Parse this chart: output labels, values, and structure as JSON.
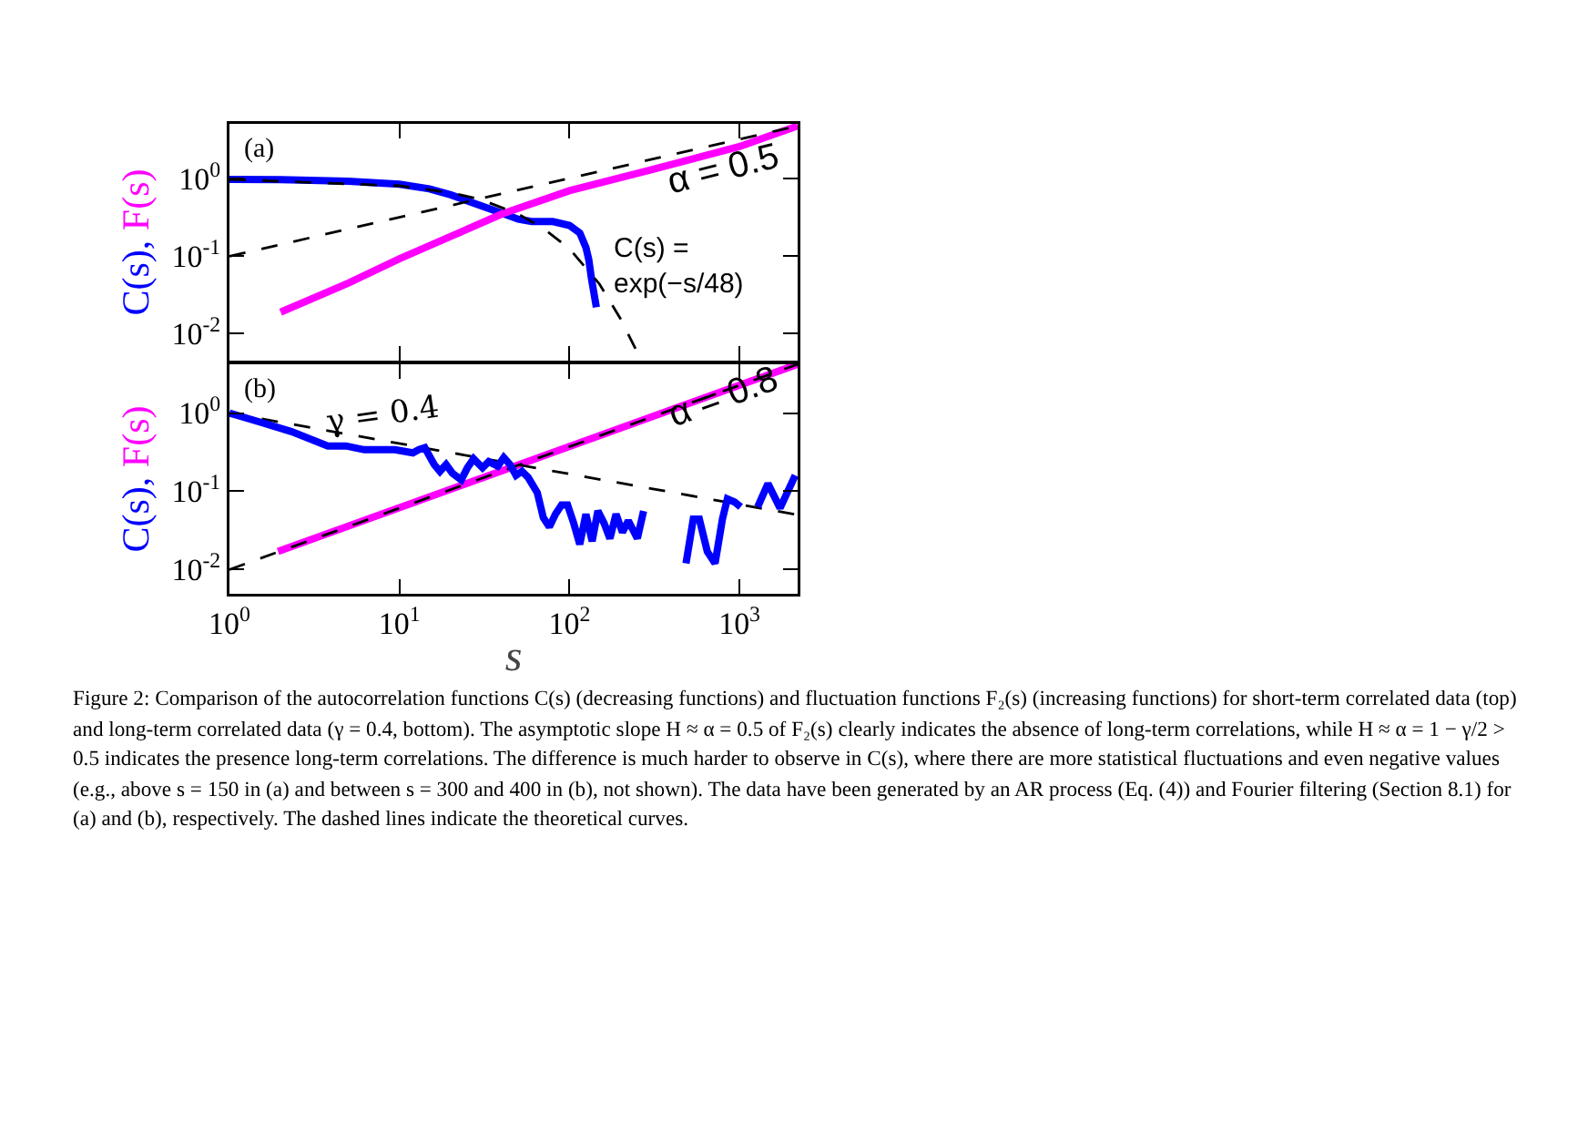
{
  "chart_data": [
    {
      "type": "line",
      "ylabel": "C(s), F(s)",
      "log": "xy",
      "grid": false,
      "marker": "none",
      "tick_labels": "y",
      "xlim": [
        1,
        2200
      ],
      "ylim": [
        0.0045,
        5.1
      ],
      "xticks": [
        {
          "value": 1,
          "label": null
        },
        {
          "value": 10,
          "label": null
        },
        {
          "value": 100,
          "label": null
        },
        {
          "value": 1000,
          "label": null
        }
      ],
      "yticks": [
        {
          "value": 0.01,
          "label": "10$^{-2}$"
        },
        {
          "value": 0.1,
          "label": "10$^{-1}$"
        },
        {
          "value": 1,
          "label": "10$^{0}$"
        }
      ],
      "series": [
        {
          "color": "#0000ff",
          "line_style": "solid",
          "x": [
            1,
            2,
            5,
            10,
            15,
            20,
            25,
            30,
            40,
            50,
            60,
            80,
            100,
            115,
            125,
            130,
            135,
            144
          ],
          "values": [
            0.98,
            0.97,
            0.93,
            0.85,
            0.74,
            0.62,
            0.52,
            0.45,
            0.36,
            0.3,
            0.28,
            0.28,
            0.25,
            0.2,
            0.13,
            0.09,
            0.05,
            0.022
          ]
        },
        {
          "color": "#ff00ff",
          "line_style": "solid",
          "x": [
            2,
            5,
            10,
            20,
            40,
            100,
            300,
            1000,
            2200
          ],
          "values": [
            0.019,
            0.045,
            0.093,
            0.18,
            0.35,
            0.7,
            1.3,
            2.6,
            4.8
          ]
        },
        {
          "color": "#000000",
          "line_style": "dashed",
          "x": [
            1,
            2200
          ],
          "values": [
            0.1,
            4.8
          ]
        },
        {
          "color": "#000000",
          "line_style": "dashed",
          "x": [
            1,
            10,
            20,
            30,
            50,
            70,
            100,
            150,
            200,
            260
          ],
          "values": [
            0.98,
            0.81,
            0.66,
            0.54,
            0.35,
            0.23,
            0.125,
            0.044,
            0.0155,
            0.0049
          ]
        }
      ],
      "annotations": [
        "(a)",
        "α = 0.5",
        "C(s) =\nexp(−s/48)"
      ]
    },
    {
      "type": "line",
      "xlabel": "s",
      "ylabel": "C(s), F(s)",
      "log": "xy",
      "grid": false,
      "marker": "none",
      "xlim": [
        1,
        2200
      ],
      "ylim": [
        0.0049,
        4.2
      ],
      "xticks": [
        {
          "value": 1,
          "label": "10$^{0}$"
        },
        {
          "value": 10,
          "label": "10$^{1}$"
        },
        {
          "value": 100,
          "label": "10$^{2}$"
        },
        {
          "value": 1000,
          "label": "10$^{3}$"
        }
      ],
      "yticks": [
        {
          "value": 0.01,
          "label": "10$^{-2}$"
        },
        {
          "value": 0.1,
          "label": "10$^{-1}$"
        },
        {
          "value": 1,
          "label": "10$^{0}$"
        }
      ],
      "series": [
        {
          "color": "#ff00ff",
          "line_style": "solid",
          "x": [
            1.93,
            2200
          ],
          "values": [
            0.017,
            4.2
          ]
        },
        {
          "color": "#000000",
          "line_style": "dashed",
          "x": [
            1,
            2200
          ],
          "values": [
            1,
            0.05
          ]
        },
        {
          "color": "#000000",
          "line_style": "dashed",
          "x": [
            1,
            2200
          ],
          "values": [
            0.01,
            4.2
          ]
        },
        {
          "color": "#0000ff",
          "line_style": "solid",
          "x": [
            1,
            1.53,
            2.31,
            3.79,
            4.85,
            6.2,
            9.4,
            12,
            13,
            14.1,
            16,
            17.3,
            18.8,
            20.5,
            23.1,
            25.1,
            27.3,
            30.8,
            33.5,
            37.9,
            41.1,
            44.7,
            48.5,
            52.6,
            57.2,
            64.7,
            70.2,
            76.2,
            82.8,
            89.9,
            97.5,
            106,
            115,
            125,
            136,
            147,
            160,
            173,
            188,
            205,
            222,
            251,
            273,
            350,
            485,
            535,
            581,
            647,
            719,
            794,
            849,
            936,
            1017,
            1150,
            1280,
            1472,
            1734,
            2130
          ],
          "values": [
            1,
            0.76,
            0.58,
            0.38,
            0.38,
            0.34,
            0.34,
            0.31,
            0.34,
            0.36,
            0.22,
            0.18,
            0.22,
            0.17,
            0.14,
            0.2,
            0.26,
            0.2,
            0.24,
            0.21,
            0.27,
            0.22,
            0.16,
            0.18,
            0.15,
            0.096,
            0.046,
            0.035,
            0.051,
            0.067,
            0.067,
            0.039,
            0.021,
            0.051,
            0.023,
            0.056,
            0.039,
            0.025,
            0.051,
            0.03,
            0.042,
            0.025,
            0.056,
            null,
            0.012,
            0.044,
            0.044,
            0.017,
            0.012,
            0.044,
            0.08,
            0.073,
            0.063,
            null,
            0.063,
            0.125,
            0.061,
            0.16
          ]
        }
      ],
      "annotations": [
        "(b)",
        "γ = 0.4",
        "α = 0.8",
        "Figure 2: Comparison of the autocorrelation functions C(s) (decreasing functions) and fluctuation functions F₂(s) (increasing functions) for short-term correlated data (top) and long-term correlated data (γ = 0.4, bottom). The asymptotic slope H ≈ α = 0.5 of F₂(s) clearly indicates the absence of long-term correlations, while H ≈ α = 1 − γ/2 > 0.5 indicates the presence long-term correlations. The difference is much harder to observe in C(s), where there are more statistical fluctuations and even negative values (e.g., above s = 150 in (a) and between s = 300 and 400 in (b), not shown). The data have been generated by an AR process (Eq. (4)) and Fourier filtering (Section 8.1) for (a) and (b), respectively. The dashed lines indicate the theoretical curves."
      ]
    }
  ]
}
